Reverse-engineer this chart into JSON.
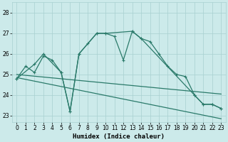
{
  "xlabel": "Humidex (Indice chaleur)",
  "xlim": [
    -0.5,
    23.5
  ],
  "ylim": [
    22.7,
    28.5
  ],
  "yticks": [
    23,
    24,
    25,
    26,
    27,
    28
  ],
  "xticks": [
    0,
    1,
    2,
    3,
    4,
    5,
    6,
    7,
    8,
    9,
    10,
    11,
    12,
    13,
    14,
    15,
    16,
    17,
    18,
    19,
    20,
    21,
    22,
    23
  ],
  "bg_color": "#cceaea",
  "grid_color": "#a8d0d0",
  "line_color": "#2a7a6a",
  "line1_x": [
    0,
    1,
    2,
    3,
    4,
    5,
    6,
    7,
    8,
    9,
    10,
    11,
    12,
    13,
    14,
    15,
    16,
    17,
    18,
    19,
    20,
    21,
    22,
    23
  ],
  "line1_y": [
    24.8,
    25.4,
    25.1,
    25.9,
    25.7,
    25.1,
    23.2,
    26.0,
    26.5,
    27.0,
    27.0,
    26.85,
    25.7,
    27.1,
    26.75,
    26.6,
    26.0,
    25.4,
    25.0,
    24.9,
    24.0,
    23.55,
    23.55,
    23.35
  ],
  "line2_x": [
    0,
    2,
    3,
    5,
    6,
    7,
    9,
    10,
    13,
    14,
    20,
    21,
    22,
    23
  ],
  "line2_y": [
    24.8,
    25.5,
    26.0,
    25.1,
    23.2,
    26.0,
    27.0,
    27.0,
    27.1,
    26.75,
    24.0,
    23.55,
    23.55,
    23.35
  ],
  "line3_x": [
    0,
    23
  ],
  "line3_y": [
    24.85,
    22.85
  ],
  "line4_x": [
    0,
    23
  ],
  "line4_y": [
    25.0,
    24.05
  ]
}
